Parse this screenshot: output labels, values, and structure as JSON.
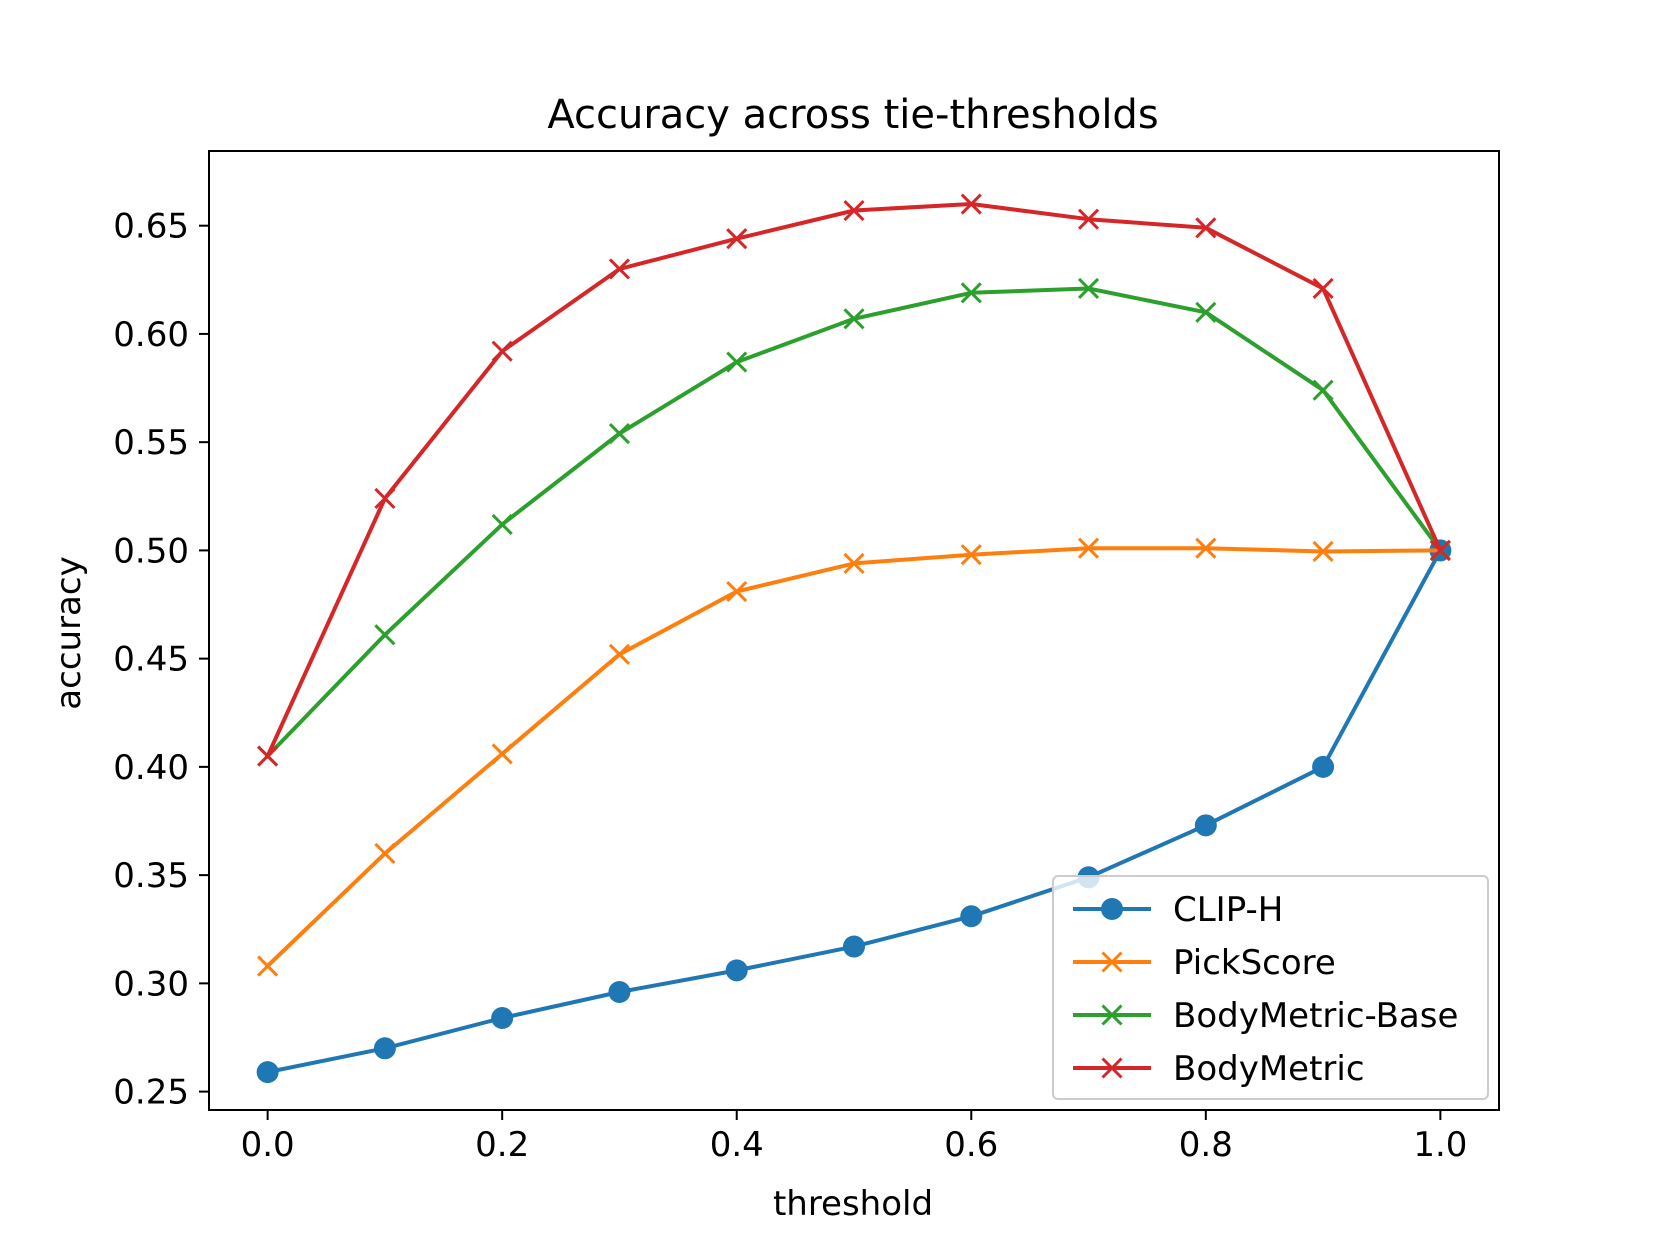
{
  "chart_data": {
    "type": "line",
    "title": "Accuracy across tie-thresholds",
    "xlabel": "threshold",
    "ylabel": "accuracy",
    "xlim": [
      -0.05,
      1.05
    ],
    "ylim": [
      0.2415,
      0.6845
    ],
    "xticks": [
      0.0,
      0.2,
      0.4,
      0.6,
      0.8,
      1.0
    ],
    "xtick_labels": [
      "0.0",
      "0.2",
      "0.4",
      "0.6",
      "0.8",
      "1.0"
    ],
    "yticks": [
      0.25,
      0.3,
      0.35,
      0.4,
      0.45,
      0.5,
      0.55,
      0.6,
      0.65
    ],
    "ytick_labels": [
      "0.25",
      "0.30",
      "0.35",
      "0.40",
      "0.45",
      "0.50",
      "0.55",
      "0.60",
      "0.65"
    ],
    "grid": false,
    "legend_position": "bottom-right",
    "x": [
      0.0,
      0.1,
      0.2,
      0.3,
      0.4,
      0.5,
      0.6,
      0.7,
      0.8,
      0.9,
      1.0
    ],
    "series": [
      {
        "name": "CLIP-H",
        "color": "#1f77b4",
        "marker": "circle",
        "values": [
          0.259,
          0.27,
          0.284,
          0.296,
          0.306,
          0.317,
          0.331,
          0.349,
          0.373,
          0.4,
          0.5
        ]
      },
      {
        "name": "PickScore",
        "color": "#ff7f0e",
        "marker": "x",
        "values": [
          0.308,
          0.36,
          0.406,
          0.452,
          0.481,
          0.494,
          0.498,
          0.501,
          0.501,
          0.4995,
          0.5
        ]
      },
      {
        "name": "BodyMetric-Base",
        "color": "#2ca02c",
        "marker": "x",
        "values": [
          0.405,
          0.461,
          0.512,
          0.554,
          0.587,
          0.607,
          0.619,
          0.621,
          0.61,
          0.574,
          0.5
        ]
      },
      {
        "name": "BodyMetric",
        "color": "#d62728",
        "marker": "x",
        "values": [
          0.405,
          0.524,
          0.592,
          0.63,
          0.644,
          0.657,
          0.66,
          0.653,
          0.649,
          0.621,
          0.5
        ]
      }
    ]
  }
}
